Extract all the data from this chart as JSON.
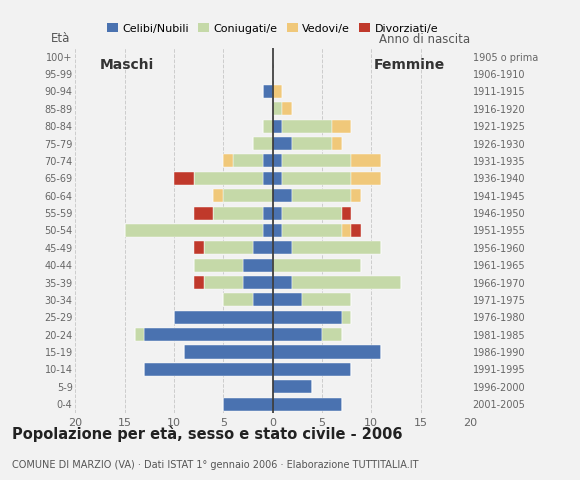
{
  "age_groups_bottom_to_top": [
    "0-4",
    "5-9",
    "10-14",
    "15-19",
    "20-24",
    "25-29",
    "30-34",
    "35-39",
    "40-44",
    "45-49",
    "50-54",
    "55-59",
    "60-64",
    "65-69",
    "70-74",
    "75-79",
    "80-84",
    "85-89",
    "90-94",
    "95-99",
    "100+"
  ],
  "birth_years_bottom_to_top": [
    "2001-2005",
    "1996-2000",
    "1991-1995",
    "1986-1990",
    "1981-1985",
    "1976-1980",
    "1971-1975",
    "1966-1970",
    "1961-1965",
    "1956-1960",
    "1951-1955",
    "1946-1950",
    "1941-1945",
    "1936-1940",
    "1931-1935",
    "1926-1930",
    "1921-1925",
    "1916-1920",
    "1911-1915",
    "1906-1910",
    "1905 o prima"
  ],
  "male": {
    "celibe": [
      5,
      0,
      13,
      9,
      13,
      10,
      2,
      3,
      3,
      2,
      1,
      1,
      0,
      1,
      1,
      0,
      0,
      0,
      1,
      0,
      0
    ],
    "coniugato": [
      0,
      0,
      0,
      0,
      1,
      0,
      3,
      4,
      5,
      5,
      14,
      5,
      5,
      7,
      3,
      2,
      1,
      0,
      0,
      0,
      0
    ],
    "vedovo": [
      0,
      0,
      0,
      0,
      0,
      0,
      0,
      0,
      0,
      0,
      0,
      0,
      1,
      0,
      1,
      0,
      0,
      0,
      0,
      0,
      0
    ],
    "divorziato": [
      0,
      0,
      0,
      0,
      0,
      0,
      0,
      1,
      0,
      1,
      0,
      2,
      0,
      2,
      0,
      0,
      0,
      0,
      0,
      0,
      0
    ]
  },
  "female": {
    "nubile": [
      7,
      4,
      8,
      11,
      5,
      7,
      3,
      2,
      0,
      2,
      1,
      1,
      2,
      1,
      1,
      2,
      1,
      0,
      0,
      0,
      0
    ],
    "coniugata": [
      0,
      0,
      0,
      0,
      2,
      1,
      5,
      11,
      9,
      9,
      6,
      6,
      6,
      7,
      7,
      4,
      5,
      1,
      0,
      0,
      0
    ],
    "vedova": [
      0,
      0,
      0,
      0,
      0,
      0,
      0,
      0,
      0,
      0,
      1,
      0,
      1,
      3,
      3,
      1,
      2,
      1,
      1,
      0,
      0
    ],
    "divorziata": [
      0,
      0,
      0,
      0,
      0,
      0,
      0,
      0,
      0,
      0,
      1,
      1,
      0,
      0,
      0,
      0,
      0,
      0,
      0,
      0,
      0
    ]
  },
  "colors": {
    "celibe": "#4a72b0",
    "coniugato": "#c5d9a8",
    "vedovo": "#f0c87a",
    "divorziato": "#c0392b"
  },
  "title": "Popolazione per età, sesso e stato civile - 2006",
  "subtitle": "COMUNE DI MARZIO (VA) · Dati ISTAT 1° gennaio 2006 · Elaborazione TUTTITALIA.IT",
  "xlim": 20,
  "background_color": "#f2f2f2",
  "legend_labels": [
    "Celibi/Nubili",
    "Coniugati/e",
    "Vedovi/e",
    "Divorziati/e"
  ]
}
